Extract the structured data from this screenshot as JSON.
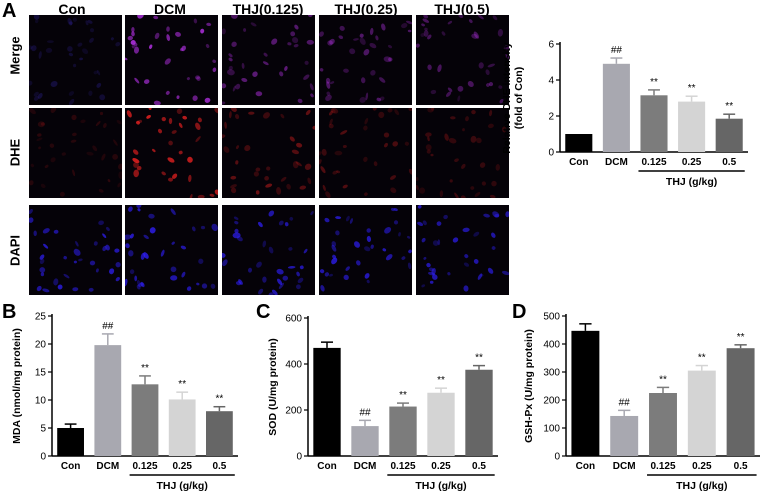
{
  "figure": {
    "panel_a_letter": "A",
    "columns": [
      "Con",
      "DCM",
      "THJ(0.125)",
      "THJ(0.25)",
      "THJ(0.5)"
    ],
    "rows": [
      "Merge",
      "DHE",
      "DAPI"
    ],
    "intensity": {
      "Merge": [
        0.25,
        1.0,
        0.55,
        0.5,
        0.4
      ],
      "DHE": [
        0.15,
        1.0,
        0.5,
        0.35,
        0.25
      ],
      "DAPI": [
        0.8,
        0.9,
        0.8,
        0.8,
        0.75
      ]
    },
    "colors": {
      "Merge": "#b030e0",
      "DHE": "#e02020",
      "DAPI": "#3020ff",
      "Merge_con": "#4030d0"
    }
  },
  "chart_data": [
    {
      "id": "A",
      "type": "bar",
      "letter": "",
      "categories": [
        "Con",
        "DCM",
        "0.125",
        "0.25",
        "0.5"
      ],
      "values": [
        1.0,
        4.9,
        3.15,
        2.8,
        1.85
      ],
      "errors": [
        0.0,
        0.32,
        0.3,
        0.3,
        0.25
      ],
      "annotations": [
        "",
        "##",
        "**",
        "**",
        "**"
      ],
      "colors": [
        "#000000",
        "#a8a8b0",
        "#7c7c7c",
        "#d4d4d4",
        "#666666"
      ],
      "ylabel": "Relative DHE intensity\n(fold of Con)",
      "yticks": [
        0,
        2,
        4,
        6
      ],
      "ylim": [
        0,
        6
      ],
      "group_label": "THJ (g/kg)"
    },
    {
      "id": "B",
      "type": "bar",
      "letter": "B",
      "categories": [
        "Con",
        "DCM",
        "0.125",
        "0.25",
        "0.5"
      ],
      "values": [
        5.0,
        19.8,
        12.8,
        10.1,
        8.0
      ],
      "errors": [
        0.7,
        2.0,
        1.5,
        1.3,
        0.8
      ],
      "annotations": [
        "",
        "##",
        "**",
        "**",
        "**"
      ],
      "colors": [
        "#000000",
        "#a8a8b0",
        "#7c7c7c",
        "#d4d4d4",
        "#666666"
      ],
      "ylabel": "MDA (nmol/mg protein)",
      "yticks": [
        0,
        5,
        10,
        15,
        20,
        25
      ],
      "ylim": [
        0,
        25
      ],
      "group_label": "THJ (g/kg)"
    },
    {
      "id": "C",
      "type": "bar",
      "letter": "C",
      "categories": [
        "Con",
        "DCM",
        "0.125",
        "0.25",
        "0.5"
      ],
      "values": [
        470,
        130,
        215,
        275,
        375
      ],
      "errors": [
        25,
        25,
        15,
        20,
        18
      ],
      "annotations": [
        "",
        "##",
        "**",
        "**",
        "**"
      ],
      "colors": [
        "#000000",
        "#a8a8b0",
        "#7c7c7c",
        "#d4d4d4",
        "#666666"
      ],
      "ylabel": "SOD (U/mg protein)",
      "yticks": [
        0,
        200,
        400,
        600
      ],
      "ylim": [
        0,
        600
      ],
      "group_label": "THJ (g/kg)"
    },
    {
      "id": "D",
      "type": "bar",
      "letter": "D",
      "categories": [
        "Con",
        "DCM",
        "0.125",
        "0.25",
        "0.5"
      ],
      "values": [
        447,
        143,
        225,
        305,
        385
      ],
      "errors": [
        25,
        20,
        20,
        18,
        12
      ],
      "annotations": [
        "",
        "##",
        "**",
        "**",
        "**"
      ],
      "colors": [
        "#000000",
        "#a8a8b0",
        "#7c7c7c",
        "#d4d4d4",
        "#666666"
      ],
      "ylabel": "GSH-Px (U/mg protein)",
      "yticks": [
        0,
        100,
        200,
        300,
        400,
        500
      ],
      "ylim": [
        0,
        500
      ],
      "group_label": "THJ (g/kg)"
    }
  ]
}
